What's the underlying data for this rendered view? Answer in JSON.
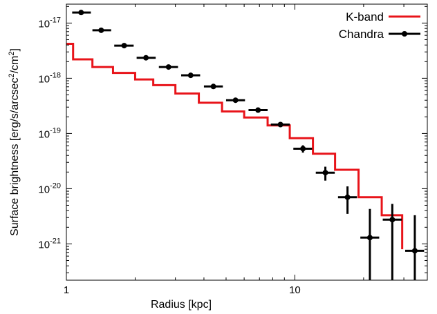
{
  "chart_data": {
    "type": "step-line-and-errorbar",
    "xlabel": "Radius [kpc]",
    "ylabel": {
      "prefix": "Surface brightness [erg/s/arcsec",
      "sup1": "2",
      "mid": "/cm",
      "sup2": "2",
      "suffix": "]"
    },
    "x_scale": "log",
    "y_scale": "log",
    "xlim": [
      1,
      38
    ],
    "ylim": [
      2.2e-22,
      2.2e-17
    ],
    "x_ticks": [
      {
        "value": 1,
        "label": "1"
      },
      {
        "value": 10,
        "label": "10"
      }
    ],
    "y_ticks": [
      {
        "value": 1e-17,
        "base": "10",
        "exp": "-17"
      },
      {
        "value": 1e-18,
        "base": "10",
        "exp": "-18"
      },
      {
        "value": 1e-19,
        "base": "10",
        "exp": "-19"
      },
      {
        "value": 1e-20,
        "base": "10",
        "exp": "-20"
      },
      {
        "value": 1e-21,
        "base": "10",
        "exp": "-21"
      }
    ],
    "grid": false,
    "legend_position": "top-right",
    "series": [
      {
        "name": "K-band",
        "style": "step",
        "color": "#e8141a",
        "edges": [
          1.0,
          1.07,
          1.3,
          1.6,
          2.0,
          2.4,
          3.0,
          3.8,
          4.8,
          6.0,
          7.6,
          9.5,
          12.0,
          15.0,
          19.0,
          24.0,
          29.5
        ],
        "values": [
          4.2e-18,
          2.2e-18,
          1.6e-18,
          1.25e-18,
          9.5e-19,
          7.5e-19,
          5.3e-19,
          3.6e-19,
          2.5e-19,
          1.95e-19,
          1.4e-19,
          8.2e-20,
          4.3e-20,
          2.2e-20,
          7e-21,
          3.3e-21,
          8e-22
        ],
        "end_drop": true
      },
      {
        "name": "Chandra",
        "style": "points-errorbars",
        "color": "#000000",
        "points": [
          {
            "x": 1.16,
            "xlo": 1.06,
            "xhi": 1.28,
            "y": 1.55e-17,
            "ylo": 1.5e-17,
            "yhi": 1.6e-17
          },
          {
            "x": 1.42,
            "xlo": 1.3,
            "xhi": 1.57,
            "y": 7.4e-18,
            "ylo": 7.1e-18,
            "yhi": 7.7e-18
          },
          {
            "x": 1.79,
            "xlo": 1.62,
            "xhi": 1.97,
            "y": 3.9e-18,
            "ylo": 3.75e-18,
            "yhi": 4.05e-18
          },
          {
            "x": 2.23,
            "xlo": 2.03,
            "xhi": 2.46,
            "y": 2.35e-18,
            "ylo": 2.25e-18,
            "yhi": 2.45e-18
          },
          {
            "x": 2.8,
            "xlo": 2.54,
            "xhi": 3.08,
            "y": 1.6e-18,
            "ylo": 1.53e-18,
            "yhi": 1.67e-18
          },
          {
            "x": 3.5,
            "xlo": 3.18,
            "xhi": 3.85,
            "y": 1.13e-18,
            "ylo": 1.08e-18,
            "yhi": 1.18e-18
          },
          {
            "x": 4.4,
            "xlo": 4.0,
            "xhi": 4.84,
            "y": 7.1e-19,
            "ylo": 6.7e-19,
            "yhi": 7.5e-19
          },
          {
            "x": 5.5,
            "xlo": 5.0,
            "xhi": 6.05,
            "y": 4e-19,
            "ylo": 3.75e-19,
            "yhi": 4.25e-19
          },
          {
            "x": 6.9,
            "xlo": 6.27,
            "xhi": 7.6,
            "y": 2.65e-19,
            "ylo": 2.45e-19,
            "yhi": 2.85e-19
          },
          {
            "x": 8.65,
            "xlo": 7.85,
            "xhi": 9.5,
            "y": 1.45e-19,
            "ylo": 1.32e-19,
            "yhi": 1.58e-19
          },
          {
            "x": 10.85,
            "xlo": 9.85,
            "xhi": 11.9,
            "y": 5.3e-20,
            "ylo": 4.5e-20,
            "yhi": 6.1e-20
          },
          {
            "x": 13.6,
            "xlo": 12.35,
            "xhi": 14.95,
            "y": 1.95e-20,
            "ylo": 1.4e-20,
            "yhi": 2.5e-20
          },
          {
            "x": 17.0,
            "xlo": 15.45,
            "xhi": 18.7,
            "y": 7e-21,
            "ylo": 3.5e-21,
            "yhi": 1.1e-20
          },
          {
            "x": 21.3,
            "xlo": 19.35,
            "xhi": 23.4,
            "y": 1.3e-21,
            "ylo": 2.2e-22,
            "yhi": 4.3e-21
          },
          {
            "x": 26.7,
            "xlo": 24.25,
            "xhi": 29.35,
            "y": 2.75e-21,
            "ylo": 2.2e-22,
            "yhi": 5.3e-21
          },
          {
            "x": 33.5,
            "xlo": 30.4,
            "xhi": 36.8,
            "y": 7.5e-22,
            "ylo": 2.2e-22,
            "yhi": 3.3e-21
          }
        ]
      }
    ]
  }
}
